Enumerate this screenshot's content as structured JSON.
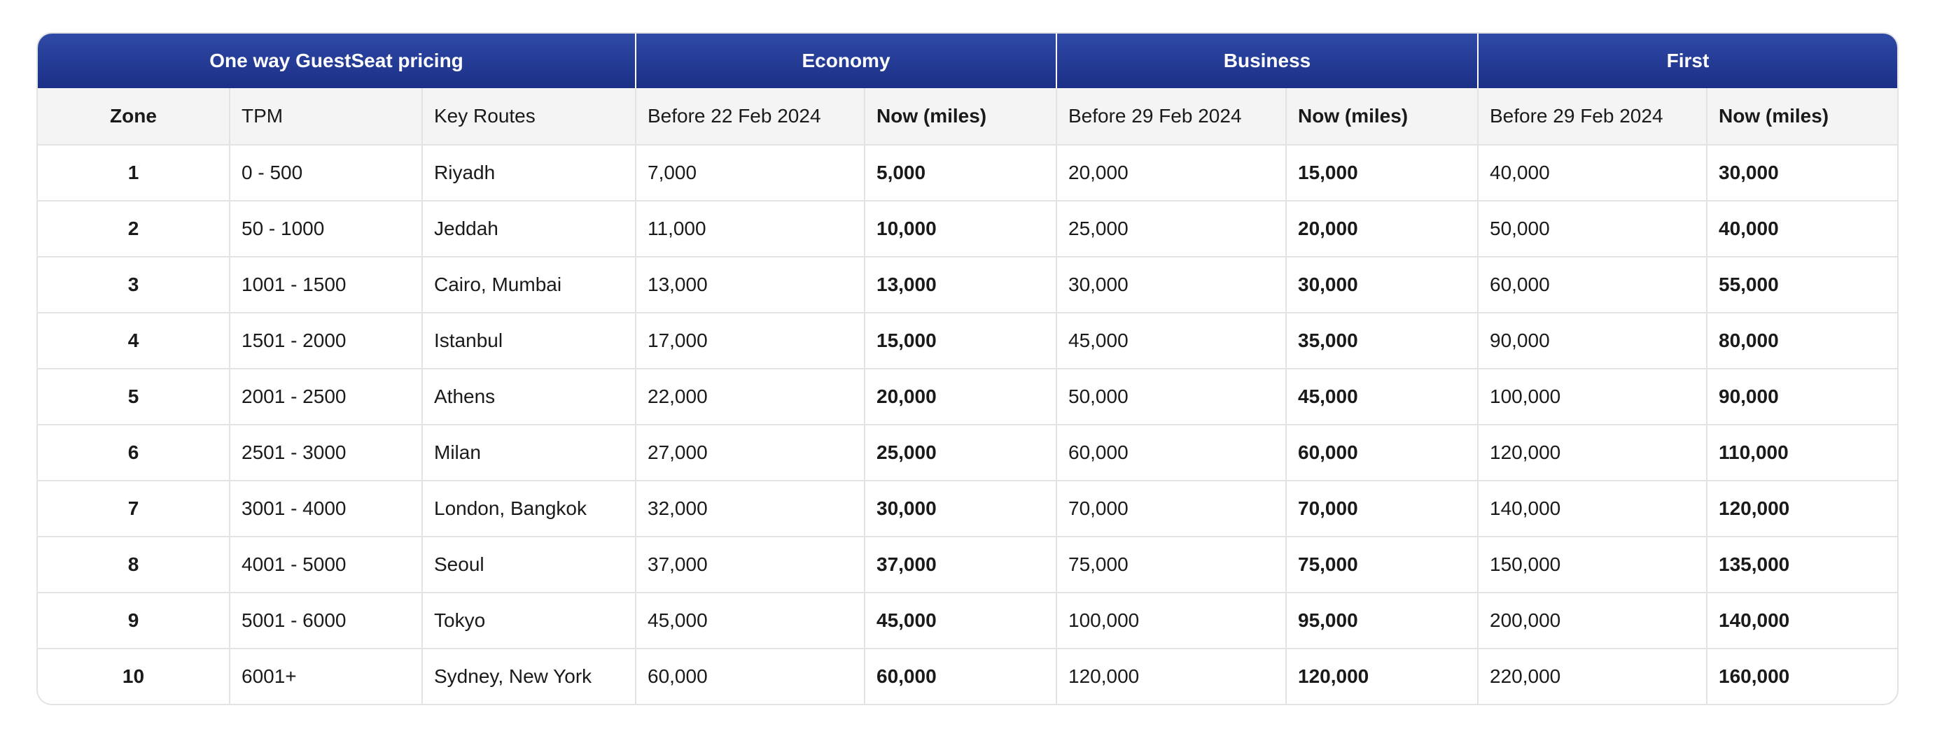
{
  "group_headers": {
    "pricing": "One way GuestSeat pricing",
    "economy": "Economy",
    "business": "Business",
    "first": "First"
  },
  "column_headers": {
    "zone": "Zone",
    "tpm": "TPM",
    "routes": "Key Routes",
    "economy_before": "Before 22 Feb 2024",
    "economy_now": "Now (miles)",
    "business_before": "Before 29 Feb 2024",
    "business_now": "Now (miles)",
    "first_before": "Before 29 Feb 2024",
    "first_now": "Now (miles)"
  },
  "rows": [
    {
      "zone": "1",
      "tpm": "0 - 500",
      "routes": "Riyadh",
      "eco_before": "7,000",
      "eco_now": "5,000",
      "bus_before": "20,000",
      "bus_now": "15,000",
      "first_before": "40,000",
      "first_now": "30,000"
    },
    {
      "zone": "2",
      "tpm": "50 - 1000",
      "routes": "Jeddah",
      "eco_before": "11,000",
      "eco_now": "10,000",
      "bus_before": "25,000",
      "bus_now": "20,000",
      "first_before": "50,000",
      "first_now": "40,000"
    },
    {
      "zone": "3",
      "tpm": "1001 - 1500",
      "routes": "Cairo, Mumbai",
      "eco_before": "13,000",
      "eco_now": "13,000",
      "bus_before": "30,000",
      "bus_now": "30,000",
      "first_before": "60,000",
      "first_now": "55,000"
    },
    {
      "zone": "4",
      "tpm": "1501 - 2000",
      "routes": "Istanbul",
      "eco_before": "17,000",
      "eco_now": "15,000",
      "bus_before": "45,000",
      "bus_now": "35,000",
      "first_before": "90,000",
      "first_now": "80,000"
    },
    {
      "zone": "5",
      "tpm": "2001 - 2500",
      "routes": "Athens",
      "eco_before": "22,000",
      "eco_now": "20,000",
      "bus_before": "50,000",
      "bus_now": "45,000",
      "first_before": "100,000",
      "first_now": "90,000"
    },
    {
      "zone": "6",
      "tpm": "2501 - 3000",
      "routes": "Milan",
      "eco_before": "27,000",
      "eco_now": "25,000",
      "bus_before": "60,000",
      "bus_now": "60,000",
      "first_before": "120,000",
      "first_now": "110,000"
    },
    {
      "zone": "7",
      "tpm": "3001 - 4000",
      "routes": "London, Bangkok",
      "eco_before": "32,000",
      "eco_now": "30,000",
      "bus_before": "70,000",
      "bus_now": "70,000",
      "first_before": "140,000",
      "first_now": "120,000"
    },
    {
      "zone": "8",
      "tpm": "4001 - 5000",
      "routes": "Seoul",
      "eco_before": "37,000",
      "eco_now": "37,000",
      "bus_before": "75,000",
      "bus_now": "75,000",
      "first_before": "150,000",
      "first_now": "135,000"
    },
    {
      "zone": "9",
      "tpm": "5001 - 6000",
      "routes": "Tokyo",
      "eco_before": "45,000",
      "eco_now": "45,000",
      "bus_before": "100,000",
      "bus_now": "95,000",
      "first_before": "200,000",
      "first_now": "140,000"
    },
    {
      "zone": "10",
      "tpm": "6001+",
      "routes": "Sydney, New York",
      "eco_before": "60,000",
      "eco_now": "60,000",
      "bus_before": "120,000",
      "bus_now": "120,000",
      "first_before": "220,000",
      "first_now": "160,000"
    }
  ],
  "colors": {
    "header_gradient_top": "#2f4aa6",
    "header_gradient_bottom": "#1b2f86",
    "subheader_bg": "#f4f4f4",
    "border": "#e3e3e3"
  }
}
